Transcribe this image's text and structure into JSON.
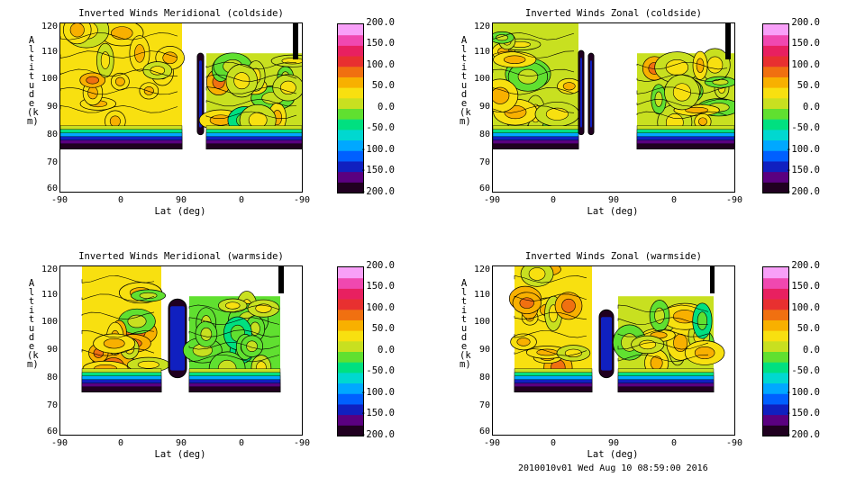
{
  "footer": "2010010v01 Wed Aug 10 08:59:00 2016",
  "chart_data": [
    {
      "type": "heatmap",
      "title": "Inverted Winds Meridional (coldside)",
      "xlabel": "Lat (deg)",
      "ylabel": "Altitude (km)",
      "x_ticks": [
        "-90",
        "0",
        "90",
        "0",
        "-90"
      ],
      "y_ticks": [
        "60",
        "70",
        "80",
        "90",
        "100",
        "110",
        "120"
      ],
      "ylim": [
        58,
        120
      ],
      "colorbar": {
        "ticks": [
          "200.0",
          "150.0",
          "100.0",
          "50.0",
          "0.0",
          "-50.0",
          "-100.0",
          "-150.0",
          "-200.0"
        ],
        "range": [
          -200,
          200
        ]
      },
      "coverage_deg": [
        [
          0,
          135
        ],
        [
          150,
          153
        ],
        [
          185,
          268
        ]
      ],
      "typical_values": {
        "left_block": 30,
        "right_block": 10,
        "bottom_edge": -180
      }
    },
    {
      "type": "heatmap",
      "title": "Inverted Winds Zonal (coldside)",
      "xlabel": "Lat (deg)",
      "ylabel": "Altitude (km)",
      "x_ticks": [
        "-90",
        "0",
        "90",
        "0",
        "-90"
      ],
      "y_ticks": [
        "60",
        "70",
        "80",
        "90",
        "100",
        "110",
        "120"
      ],
      "ylim": [
        58,
        120
      ],
      "colorbar": {
        "ticks": [
          "200.0",
          "150.0",
          "100.0",
          "50.0",
          "0.0",
          "-50.0",
          "-100.0",
          "-150.0",
          "-200.0"
        ],
        "range": [
          -200,
          200
        ]
      },
      "coverage_deg": [
        [
          0,
          118
        ],
        [
          108,
          118
        ],
        [
          180,
          268
        ]
      ],
      "typical_values": {
        "left_block": 10,
        "right_block": 20,
        "bottom_edge": -180
      }
    },
    {
      "type": "heatmap",
      "title": "Inverted Winds Meridional (warmside)",
      "xlabel": "Lat (deg)",
      "ylabel": "Altitude (km)",
      "x_ticks": [
        "-90",
        "0",
        "90",
        "0",
        "-90"
      ],
      "y_ticks": [
        "60",
        "70",
        "80",
        "90",
        "100",
        "110",
        "120"
      ],
      "ylim": [
        58,
        120
      ],
      "colorbar": {
        "ticks": [
          "200.0",
          "150.0",
          "100.0",
          "50.0",
          "0.0",
          "-50.0",
          "-100.0",
          "-150.0",
          "-200.0"
        ],
        "range": [
          -200,
          200
        ]
      },
      "coverage_deg": [
        [
          24,
          115
        ],
        [
          120,
          140
        ],
        [
          145,
          250
        ]
      ],
      "typical_values": {
        "left_block": 30,
        "right_block": -10,
        "bottom_edge": -180
      }
    },
    {
      "type": "heatmap",
      "title": "Inverted Winds Zonal (warmside)",
      "xlabel": "Lat (deg)",
      "ylabel": "Altitude (km)",
      "x_ticks": [
        "-90",
        "0",
        "90",
        "0",
        "-90"
      ],
      "y_ticks": [
        "60",
        "70",
        "80",
        "90",
        "100",
        "110",
        "120"
      ],
      "ylim": [
        58,
        120
      ],
      "colorbar": {
        "ticks": [
          "200.0",
          "150.0",
          "100.0",
          "50.0",
          "0.0",
          "-50.0",
          "-100.0",
          "-150.0",
          "-200.0"
        ],
        "range": [
          -200,
          200
        ]
      },
      "coverage_deg": [
        [
          24,
          112
        ],
        [
          118,
          134
        ],
        [
          145,
          245
        ]
      ],
      "typical_values": {
        "left_block": 25,
        "right_block": 0,
        "bottom_edge": -180
      }
    }
  ]
}
